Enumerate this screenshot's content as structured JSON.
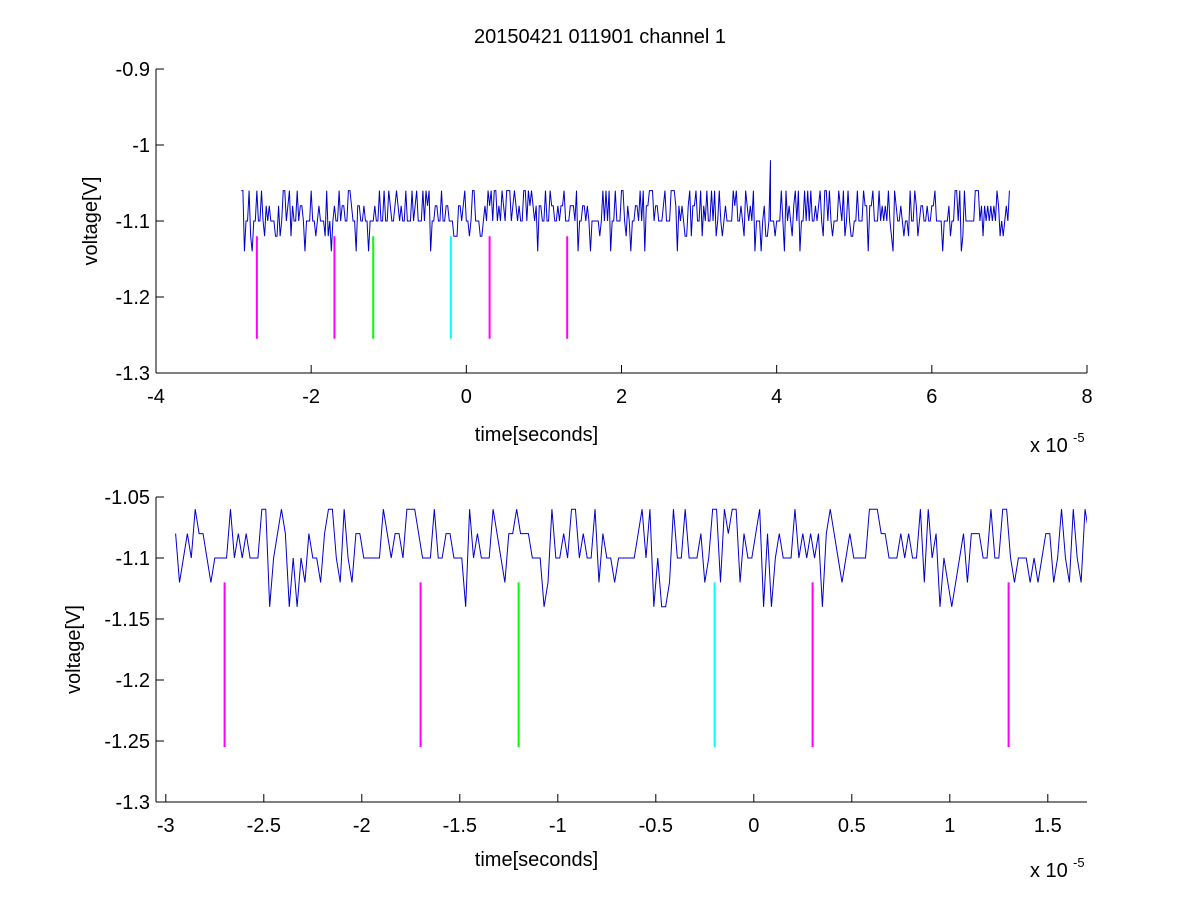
{
  "figure": {
    "title": "20150421 011901 channel 1"
  },
  "chart_data": [
    {
      "type": "line",
      "title": "20150421 011901 channel 1",
      "xlabel": "time[seconds]",
      "ylabel": "voltage[V]",
      "x_multiplier_label": "x 10",
      "x_multiplier_exponent": "-5",
      "xlim": [
        -4,
        8
      ],
      "ylim": [
        -1.3,
        -0.9
      ],
      "xticks": [
        -4,
        -2,
        0,
        2,
        4,
        6,
        8
      ],
      "xtick_labels": [
        "-4",
        "-2",
        "0",
        "2",
        "4",
        "6",
        "8"
      ],
      "yticks": [
        -1.3,
        -1.2,
        -1.1,
        -1,
        -0.9
      ],
      "ytick_labels": [
        "-1.3",
        "-1.2",
        "-1.1",
        "-1",
        "-0.9"
      ],
      "grid": false,
      "series": [
        {
          "kind": "signal",
          "color": "#0000cc",
          "x_start": -2.9,
          "x_end": 7.0,
          "baseline": -1.1,
          "levels": [
            -1.14,
            -1.12,
            -1.1,
            -1.08,
            -1.06
          ],
          "spike": {
            "x": 3.92,
            "y": -1.02
          }
        }
      ],
      "markers": [
        {
          "x": -2.7,
          "y_top": -1.12,
          "y_bottom": -1.255,
          "color": "#ff00ff"
        },
        {
          "x": -1.7,
          "y_top": -1.12,
          "y_bottom": -1.255,
          "color": "#ff00ff"
        },
        {
          "x": -1.2,
          "y_top": -1.12,
          "y_bottom": -1.255,
          "color": "#00ff00"
        },
        {
          "x": -0.2,
          "y_top": -1.12,
          "y_bottom": -1.255,
          "color": "#00ffff"
        },
        {
          "x": 0.3,
          "y_top": -1.12,
          "y_bottom": -1.255,
          "color": "#ff00ff"
        },
        {
          "x": 1.3,
          "y_top": -1.12,
          "y_bottom": -1.255,
          "color": "#ff00ff"
        }
      ]
    },
    {
      "type": "line",
      "title": "",
      "xlabel": "time[seconds]",
      "ylabel": "voltage[V]",
      "x_multiplier_label": "x 10",
      "x_multiplier_exponent": "-5",
      "xlim": [
        -3.05,
        1.7
      ],
      "ylim": [
        -1.3,
        -1.05
      ],
      "xticks": [
        -3,
        -2.5,
        -2,
        -1.5,
        -1,
        -0.5,
        0,
        0.5,
        1,
        1.5
      ],
      "xtick_labels": [
        "-3",
        "-2.5",
        "-2",
        "-1.5",
        "-1",
        "-0.5",
        "0",
        "0.5",
        "1",
        "1.5"
      ],
      "yticks": [
        -1.3,
        -1.25,
        -1.2,
        -1.15,
        -1.1,
        -1.05
      ],
      "ytick_labels": [
        "-1.3",
        "-1.25",
        "-1.2",
        "-1.15",
        "-1.1",
        "-1.05"
      ],
      "grid": false,
      "series": [
        {
          "kind": "signal",
          "color": "#0000cc",
          "x_start": -2.95,
          "x_end": 1.7,
          "baseline": -1.1,
          "levels": [
            -1.14,
            -1.12,
            -1.1,
            -1.08,
            -1.06
          ],
          "spike": null
        }
      ],
      "markers": [
        {
          "x": -2.7,
          "y_top": -1.12,
          "y_bottom": -1.255,
          "color": "#ff00ff"
        },
        {
          "x": -1.7,
          "y_top": -1.12,
          "y_bottom": -1.255,
          "color": "#ff00ff"
        },
        {
          "x": -1.2,
          "y_top": -1.12,
          "y_bottom": -1.255,
          "color": "#00ff00"
        },
        {
          "x": -0.2,
          "y_top": -1.12,
          "y_bottom": -1.255,
          "color": "#00ffff"
        },
        {
          "x": 0.3,
          "y_top": -1.12,
          "y_bottom": -1.255,
          "color": "#ff00ff"
        },
        {
          "x": 1.3,
          "y_top": -1.12,
          "y_bottom": -1.255,
          "color": "#ff00ff"
        }
      ]
    }
  ]
}
